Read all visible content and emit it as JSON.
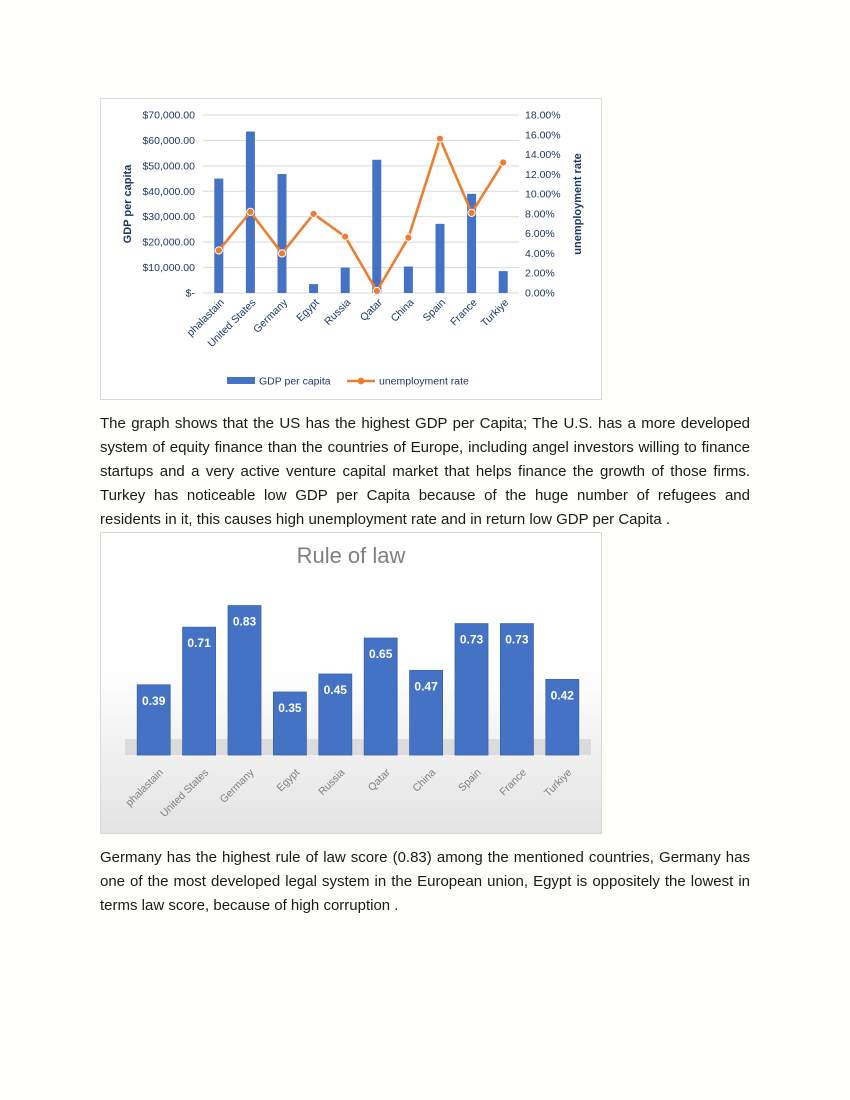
{
  "chart_data": [
    {
      "type": "bar+line",
      "categories": [
        "phalastain",
        "United States",
        "Germany",
        "Egypt",
        "Russia",
        "Qatar",
        "China",
        "Spain",
        "France",
        "Turkiye"
      ],
      "series": [
        {
          "name": "GDP per capita",
          "type": "bar",
          "axis": "left",
          "color": "#4472c4",
          "values": [
            45000,
            63500,
            46800,
            3500,
            10000,
            52400,
            10400,
            27200,
            39000,
            8600
          ]
        },
        {
          "name": "unemployment rate",
          "type": "line",
          "axis": "right",
          "color": "#ed7d31",
          "values": [
            0.043,
            0.082,
            0.04,
            0.08,
            0.057,
            0.002,
            0.056,
            0.156,
            0.081,
            0.132
          ]
        }
      ],
      "ylabel": "GDP per capita",
      "y2label": "unemployment rate",
      "ylim": [
        0,
        70000
      ],
      "y2lim": [
        0,
        0.18
      ],
      "yticks": [
        "$-",
        "$10,000.00",
        "$20,000.00",
        "$30,000.00",
        "$40,000.00",
        "$50,000.00",
        "$60,000.00",
        "$70,000.00"
      ],
      "y2ticks": [
        "0.00%",
        "2.00%",
        "4.00%",
        "6.00%",
        "8.00%",
        "10.00%",
        "12.00%",
        "14.00%",
        "16.00%",
        "18.00%"
      ],
      "legend_position": "bottom",
      "grid": true
    },
    {
      "type": "bar",
      "title": "Rule of law",
      "categories": [
        "phalastain",
        "United States",
        "Germany",
        "Egypt",
        "Russia",
        "Qatar",
        "China",
        "Spain",
        "France",
        "Turkiye"
      ],
      "values": [
        0.39,
        0.71,
        0.83,
        0.35,
        0.45,
        0.65,
        0.47,
        0.73,
        0.73,
        0.42
      ],
      "data_labels": [
        "0.39",
        "0.71",
        "0.83",
        "0.35",
        "0.45",
        "0.65",
        "0.47",
        "0.73",
        "0.73",
        "0.42"
      ],
      "ylim": [
        0,
        0.9
      ],
      "color": "#4472c4",
      "grid": false
    }
  ],
  "paragraphs": {
    "p1": "The graph shows that the US has the highest GDP per Capita; The U.S. has a more developed system of equity finance than the countries of Europe, including angel investors willing to finance startups and a very active venture capital market that helps finance the growth of those firms. Turkey has noticeable low GDP per Capita because of the huge number of refugees and residents in it, this causes high unemployment rate and in return low GDP per Capita .",
    "p2": "Germany has the highest rule of law score (0.83) among the mentioned countries, Germany has one of the most developed legal system in the European union, Egypt is oppositely the lowest in terms law score, because of high corruption ."
  }
}
